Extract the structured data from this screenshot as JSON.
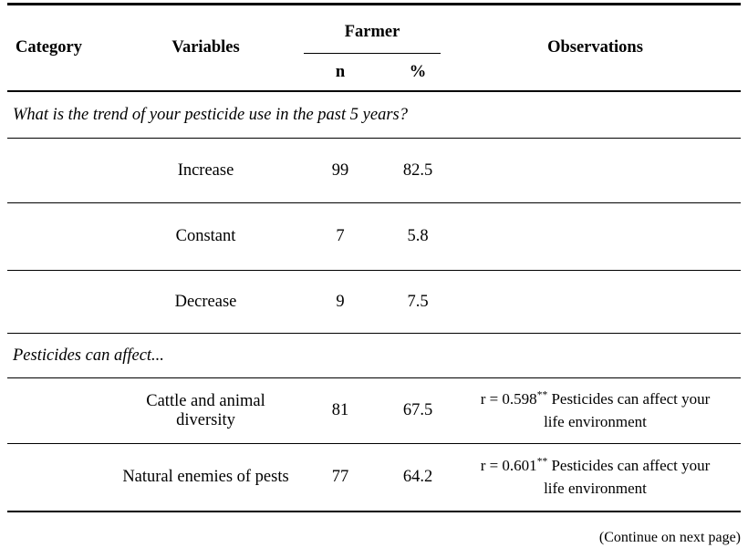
{
  "page": {
    "background": "#ffffff",
    "text_color": "#000000",
    "rule_color": "#000000"
  },
  "table": {
    "headers": {
      "category": "Category",
      "variables": "Variables",
      "farmer_group": "Farmer",
      "n": "n",
      "percent": "%",
      "observations": "Observations"
    },
    "sections": [
      {
        "title": "What is the trend of your pesticide use in the past 5 years?",
        "rows": [
          {
            "variable": "Increase",
            "n": "99",
            "percent": "82.5"
          },
          {
            "variable": "Constant",
            "n": "7",
            "percent": "5.8"
          },
          {
            "variable": "Decrease",
            "n": "9",
            "percent": "7.5"
          }
        ]
      },
      {
        "title": "Pesticides can affect...",
        "rows": [
          {
            "variable": "Cattle and animal diversity",
            "n": "81",
            "percent": "67.5",
            "observation": {
              "r_value": "r = 0.598",
              "significance": "**",
              "text": " Pesticides can affect your life environment"
            }
          },
          {
            "variable": "Natural enemies of pests",
            "n": "77",
            "percent": "64.2",
            "observation": {
              "r_value": "r = 0.601",
              "significance": "**",
              "text": " Pesticides can affect your life environment"
            }
          }
        ]
      }
    ],
    "footer_note": "(Continue on next page)"
  }
}
